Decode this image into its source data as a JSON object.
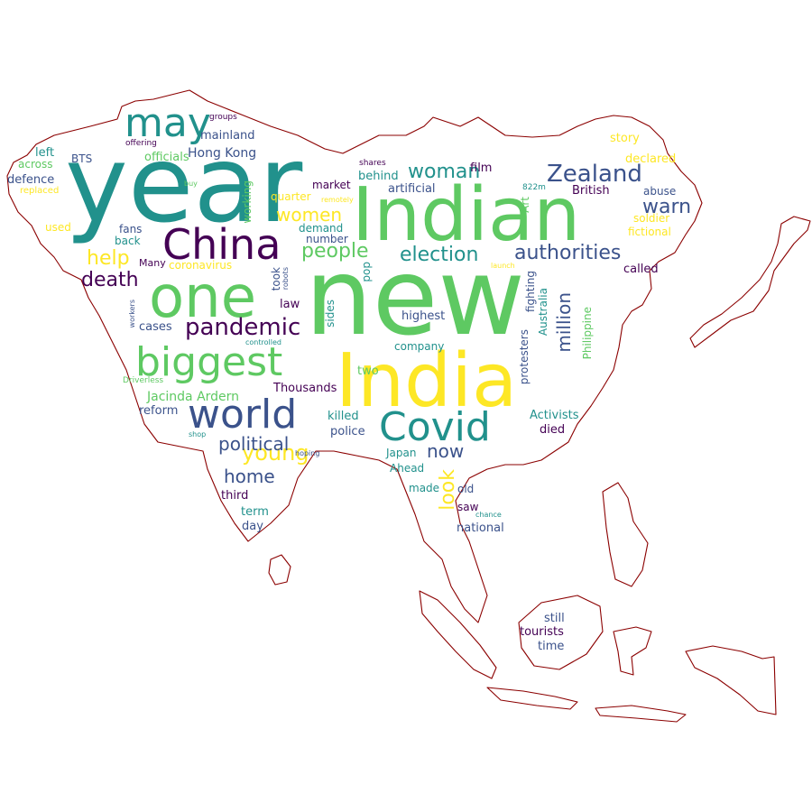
{
  "colors": {
    "background": "#ffffff",
    "outline": "#8b0000",
    "palette": [
      "#440154",
      "#3b528b",
      "#21918c",
      "#5ec962",
      "#fde725"
    ]
  },
  "words": [
    "new",
    "year",
    "Indian",
    "India",
    "one",
    "China",
    "may",
    "biggest",
    "world",
    "Covid",
    "pandemic",
    "Zealand",
    "authorities",
    "election",
    "woman",
    "people",
    "women",
    "young",
    "help",
    "death",
    "political",
    "home",
    "million",
    "look",
    "now",
    "warn",
    "Jacinda Ardern",
    "Hong Kong",
    "officials",
    "mainland",
    "offering",
    "groups",
    "BTS",
    "across",
    "left",
    "defence",
    "replaced",
    "used",
    "fans",
    "back",
    "Many",
    "coronavirus",
    "working",
    "quarter",
    "demand",
    "number",
    "market",
    "remotely",
    "shares",
    "behind",
    "film",
    "artificial",
    "822m",
    "Art",
    "British",
    "abuse",
    "soldier",
    "fictional",
    "declared",
    "story",
    "called",
    "launch",
    "fighting",
    "Australia",
    "protesters",
    "Philippine",
    "highest",
    "company",
    "took",
    "robots",
    "pop",
    "sides",
    "law",
    "controlled",
    "cases",
    "workers",
    "Driverless",
    "two",
    "Thousands",
    "reform",
    "killed",
    "police",
    "Activists",
    "died",
    "shop",
    "hoping",
    "Japan",
    "Ahead",
    "third",
    "made",
    "old",
    "saw",
    "term",
    "day",
    "chance",
    "national",
    "still",
    "tourists",
    "time",
    "buy"
  ]
}
